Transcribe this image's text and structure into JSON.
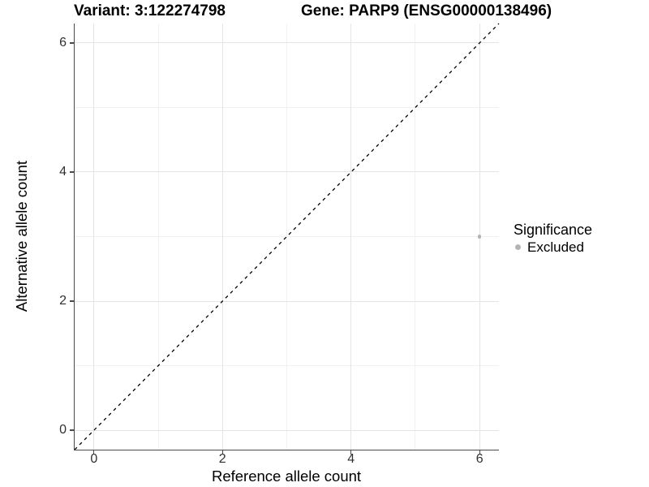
{
  "header": {
    "variant_title": "Variant: 3:122274798",
    "gene_title": "Gene: PARP9 (ENSG00000138496)"
  },
  "chart_data": {
    "type": "scatter",
    "xlabel": "Reference allele count",
    "ylabel": "Alternative allele count",
    "xlim": [
      -0.3,
      6.3
    ],
    "ylim": [
      -0.3,
      6.3
    ],
    "xticks": [
      0,
      2,
      4,
      6
    ],
    "yticks": [
      0,
      2,
      4,
      6
    ],
    "xminor": [
      1,
      3,
      5
    ],
    "yminor": [
      1,
      3,
      5
    ],
    "grid": "major+minor",
    "identity_line": {
      "equation": "y = x",
      "style": "dashed",
      "color": "#000000"
    },
    "series": [
      {
        "name": "Excluded",
        "color": "#b4b4b4",
        "marker": "circle",
        "points": [
          {
            "x": 6,
            "y": 3
          }
        ]
      }
    ],
    "legend": {
      "title": "Significance",
      "position": "right",
      "items": [
        {
          "label": "Excluded",
          "color": "#b4b4b4"
        }
      ]
    }
  },
  "colors": {
    "background": "#ffffff",
    "axis_line": "#4a4a4a",
    "tick_mark": "#4a4a4a",
    "tick_label": "#303030",
    "grid_major": "#e4e4e4",
    "grid_minor": "#f1f1f1"
  }
}
